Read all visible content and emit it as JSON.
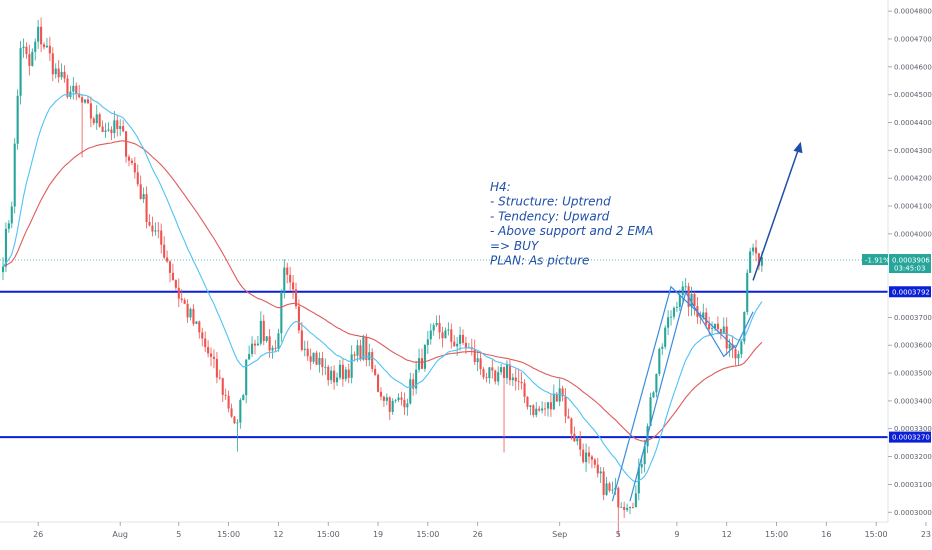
{
  "chart_data": {
    "type": "candlestick",
    "title": "",
    "xlabel": "",
    "ylabel": "",
    "ylim": [
      0.0002965,
      0.000484
    ],
    "grid": false,
    "colors": {
      "up": "#26a69a",
      "down": "#ef5350",
      "ema_fast": "#4fc3f7",
      "ema_slow": "#e05a5a",
      "support": "#0a1fd6",
      "annotation": "#1e4fa8",
      "price_tag": "#26a69a"
    },
    "y_ticks": [
      "0.0004800",
      "0.0004700",
      "0.0004600",
      "0.0004500",
      "0.0004400",
      "0.0004300",
      "0.0004200",
      "0.0004100",
      "0.0004000",
      "0.0003700",
      "0.0003600",
      "0.0003500",
      "0.0003400",
      "0.0003300",
      "0.0003200",
      "0.0003100",
      "0.0003000"
    ],
    "x_ticks": [
      {
        "label": "26",
        "i": 12
      },
      {
        "label": "Aug",
        "i": 40
      },
      {
        "label": "5",
        "i": 60
      },
      {
        "label": "15:00",
        "i": 77
      },
      {
        "label": "12",
        "i": 94
      },
      {
        "label": "15:00",
        "i": 111
      },
      {
        "label": "19",
        "i": 128
      },
      {
        "label": "15:00",
        "i": 145
      },
      {
        "label": "26",
        "i": 162
      },
      {
        "label": "Sep",
        "i": 190
      },
      {
        "label": "5",
        "i": 210
      },
      {
        "label": "9",
        "i": 230
      },
      {
        "label": "12",
        "i": 247
      },
      {
        "label": "15:00",
        "i": 264
      },
      {
        "label": "16",
        "i": 281
      },
      {
        "label": "15:00",
        "i": 298
      },
      {
        "label": "23",
        "i": 315
      }
    ],
    "support_levels": [
      {
        "value": 0.0003792,
        "label": "0.0003792"
      },
      {
        "value": 0.000327,
        "label": "0.0003270"
      }
    ],
    "current_price": {
      "value": 0.0003906,
      "change": "-1.91%",
      "price_label": "0.0003906",
      "countdown": "03:45:03"
    },
    "annotation": {
      "lines": [
        "H4:",
        "- Structure: Uptrend",
        "- Tendency: Upward",
        "- Above support and 2 EMA",
        "=> BUY",
        "PLAN: As picture"
      ]
    },
    "anchors": [
      {
        "i": 0,
        "v": 0.000392
      },
      {
        "i": 3,
        "v": 0.000412
      },
      {
        "i": 6,
        "v": 0.000468
      },
      {
        "i": 9,
        "v": 0.00046
      },
      {
        "i": 12,
        "v": 0.000472
      },
      {
        "i": 15,
        "v": 0.000466
      },
      {
        "i": 18,
        "v": 0.000458
      },
      {
        "i": 22,
        "v": 0.000452
      },
      {
        "i": 26,
        "v": 0.000448
      },
      {
        "i": 31,
        "v": 0.000441
      },
      {
        "i": 36,
        "v": 0.000438
      },
      {
        "i": 40,
        "v": 0.000437
      },
      {
        "i": 45,
        "v": 0.000422
      },
      {
        "i": 50,
        "v": 0.000404
      },
      {
        "i": 55,
        "v": 0.000394
      },
      {
        "i": 60,
        "v": 0.000378
      },
      {
        "i": 65,
        "v": 0.000368
      },
      {
        "i": 70,
        "v": 0.000357
      },
      {
        "i": 75,
        "v": 0.000344
      },
      {
        "i": 80,
        "v": 0.00033
      },
      {
        "i": 84,
        "v": 0.00036
      },
      {
        "i": 88,
        "v": 0.000365
      },
      {
        "i": 93,
        "v": 0.000358
      },
      {
        "i": 96,
        "v": 0.000385
      },
      {
        "i": 99,
        "v": 0.000377
      },
      {
        "i": 102,
        "v": 0.000362
      },
      {
        "i": 107,
        "v": 0.000355
      },
      {
        "i": 112,
        "v": 0.000348
      },
      {
        "i": 118,
        "v": 0.000352
      },
      {
        "i": 123,
        "v": 0.00036
      },
      {
        "i": 128,
        "v": 0.000345
      },
      {
        "i": 133,
        "v": 0.000338
      },
      {
        "i": 138,
        "v": 0.000342
      },
      {
        "i": 143,
        "v": 0.000355
      },
      {
        "i": 148,
        "v": 0.000366
      },
      {
        "i": 153,
        "v": 0.000362
      },
      {
        "i": 158,
        "v": 0.00036
      },
      {
        "i": 163,
        "v": 0.000352
      },
      {
        "i": 168,
        "v": 0.000346
      },
      {
        "i": 172,
        "v": 0.000352
      },
      {
        "i": 177,
        "v": 0.000343
      },
      {
        "i": 182,
        "v": 0.000336
      },
      {
        "i": 187,
        "v": 0.000338
      },
      {
        "i": 190,
        "v": 0.000346
      },
      {
        "i": 193,
        "v": 0.000332
      },
      {
        "i": 197,
        "v": 0.000323
      },
      {
        "i": 202,
        "v": 0.000314
      },
      {
        "i": 207,
        "v": 0.000307
      },
      {
        "i": 212,
        "v": 0.000304
      },
      {
        "i": 216,
        "v": 0.000306
      },
      {
        "i": 221,
        "v": 0.00034
      },
      {
        "i": 226,
        "v": 0.000365
      },
      {
        "i": 231,
        "v": 0.00038
      },
      {
        "i": 236,
        "v": 0.000374
      },
      {
        "i": 241,
        "v": 0.000369
      },
      {
        "i": 246,
        "v": 0.000363
      },
      {
        "i": 250,
        "v": 0.000359
      },
      {
        "i": 252,
        "v": 0.000362
      },
      {
        "i": 254,
        "v": 0.000388
      },
      {
        "i": 256,
        "v": 0.000393
      },
      {
        "i": 258,
        "v": 0.000389
      }
    ]
  }
}
